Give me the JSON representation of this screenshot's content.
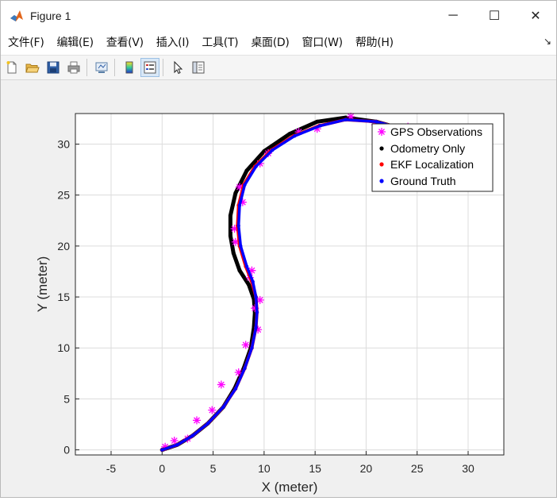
{
  "window": {
    "title": "Figure 1",
    "controls": {
      "minimize": "─",
      "maximize": "☐",
      "close": "✕"
    }
  },
  "menu": {
    "items": [
      "文件(F)",
      "编辑(E)",
      "查看(V)",
      "插入(I)",
      "工具(T)",
      "桌面(D)",
      "窗口(W)",
      "帮助(H)"
    ],
    "dock": "↘"
  },
  "toolbar": {
    "buttons": [
      "new-figure-icon",
      "open-file-icon",
      "save-icon",
      "print-icon",
      "link-figure-icon",
      "insert-colorbar-icon",
      "insert-legend-icon",
      "edit-plot-icon",
      "property-inspector-icon"
    ],
    "active": "insert-legend-icon"
  },
  "colors": {
    "gps": "#ff00ff",
    "odometry": "#000000",
    "ekf": "#ff0000",
    "truth": "#0000ff",
    "grid": "#dcdcdc"
  },
  "chart_data": {
    "type": "scatter",
    "title": "",
    "xlabel": "X (meter)",
    "ylabel": "Y (meter)",
    "xlim": [
      -8.5,
      33.5
    ],
    "ylim": [
      -0.5,
      33
    ],
    "xticks": [
      -5,
      0,
      5,
      10,
      15,
      20,
      25,
      30
    ],
    "yticks": [
      0,
      5,
      10,
      15,
      20,
      25,
      30
    ],
    "grid": true,
    "legend_position": "top-right",
    "legend": [
      {
        "label": "GPS Observations",
        "marker": "asterisk",
        "color": "#ff00ff"
      },
      {
        "label": "Odometry Only",
        "marker": "dot",
        "color": "#000000"
      },
      {
        "label": "EKF Localization",
        "marker": "dot",
        "color": "#ff0000"
      },
      {
        "label": "Ground Truth",
        "marker": "dot",
        "color": "#0000ff"
      }
    ],
    "series": [
      {
        "name": "Ground Truth",
        "x": [
          0,
          1.5,
          3,
          4.5,
          6,
          7.2,
          8.1,
          8.8,
          9.2,
          9.3,
          9.2,
          8.9,
          8.3,
          7.7,
          7.5,
          7.6,
          8.1,
          9.2,
          10.8,
          13,
          15.5,
          18,
          21,
          24
        ],
        "y": [
          0,
          0.5,
          1.4,
          2.6,
          4.2,
          6,
          8,
          10,
          12,
          13.5,
          15,
          16.5,
          18,
          20,
          22,
          24,
          26,
          27.8,
          29.4,
          30.8,
          31.8,
          32.4,
          32.2,
          31.4
        ]
      },
      {
        "name": "Odometry Only",
        "x": [
          0,
          1.5,
          3,
          4.5,
          6,
          7.1,
          8,
          8.7,
          9,
          9.1,
          9,
          8.5,
          7.6,
          7,
          6.7,
          6.7,
          7.2,
          8.3,
          10,
          12.5,
          15.2,
          18,
          21,
          23.5
        ],
        "y": [
          0,
          0.5,
          1.4,
          2.6,
          4.2,
          6,
          8,
          10,
          12,
          13.5,
          14.8,
          16.2,
          17.6,
          19.3,
          21,
          23,
          25.2,
          27.4,
          29.3,
          31,
          32.2,
          32.6,
          32.2,
          31.5
        ]
      },
      {
        "name": "EKF Localization",
        "x": [
          0,
          1.5,
          3,
          4.5,
          6,
          7.2,
          8.1,
          8.8,
          9.2,
          9.3,
          9.2,
          8.8,
          8.2,
          7.6,
          7.4,
          7.5,
          8,
          9.1,
          10.7,
          12.9,
          15.4,
          18,
          21,
          24
        ],
        "y": [
          0,
          0.5,
          1.4,
          2.6,
          4.2,
          6,
          8,
          10,
          12,
          13.5,
          15,
          16.5,
          18,
          20,
          22,
          24,
          26,
          27.8,
          29.4,
          30.8,
          31.8,
          32.4,
          32.2,
          31.4
        ]
      },
      {
        "name": "GPS Observations",
        "x": [
          0.3,
          1.2,
          2.5,
          3.4,
          4.9,
          5.8,
          7.5,
          8.2,
          9.4,
          9.1,
          9.6,
          8.6,
          8.8,
          7.2,
          7.1,
          7.9,
          7.6,
          9.6,
          10.4,
          13.4,
          15.2,
          18.5,
          20.9,
          24.1
        ],
        "y": [
          0.3,
          0.9,
          1.1,
          2.9,
          3.9,
          6.4,
          7.6,
          10.3,
          11.8,
          13.9,
          14.7,
          16.9,
          17.6,
          20.4,
          21.7,
          24.3,
          25.8,
          28.1,
          29.1,
          31.2,
          31.5,
          32.7,
          31.9,
          31.7
        ]
      }
    ]
  }
}
